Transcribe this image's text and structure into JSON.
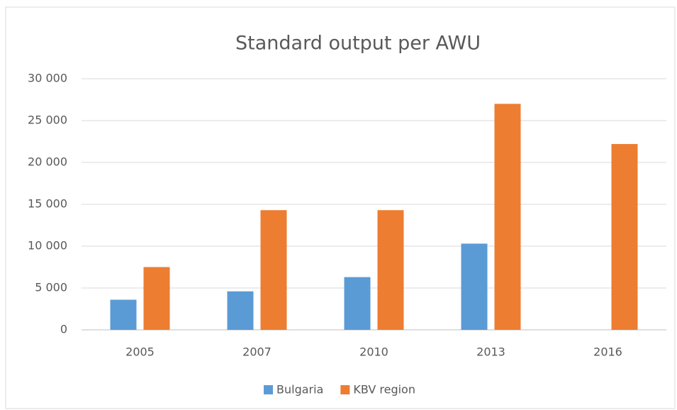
{
  "chart_data": {
    "type": "bar",
    "title": "Standard output per AWU",
    "categories": [
      "2005",
      "2007",
      "2010",
      "2013",
      "2016"
    ],
    "series": [
      {
        "name": "Bulgaria",
        "color": "#5b9bd5",
        "values": [
          3600,
          4600,
          6300,
          10300,
          null
        ]
      },
      {
        "name": "KBV region",
        "color": "#ed7d31",
        "values": [
          7500,
          14300,
          14300,
          27000,
          22200
        ]
      }
    ],
    "ylim": [
      0,
      30000
    ],
    "yticks": [
      0,
      {
        "value": 5000,
        "label": "5 000"
      },
      {
        "value": 10000,
        "label": "10 000"
      },
      {
        "value": 15000,
        "label": "15 000"
      },
      {
        "value": 20000,
        "label": "20 000"
      },
      {
        "value": 25000,
        "label": "25 000"
      },
      {
        "value": 30000,
        "label": "30 000"
      }
    ],
    "grid": true,
    "legend": "bottom"
  }
}
